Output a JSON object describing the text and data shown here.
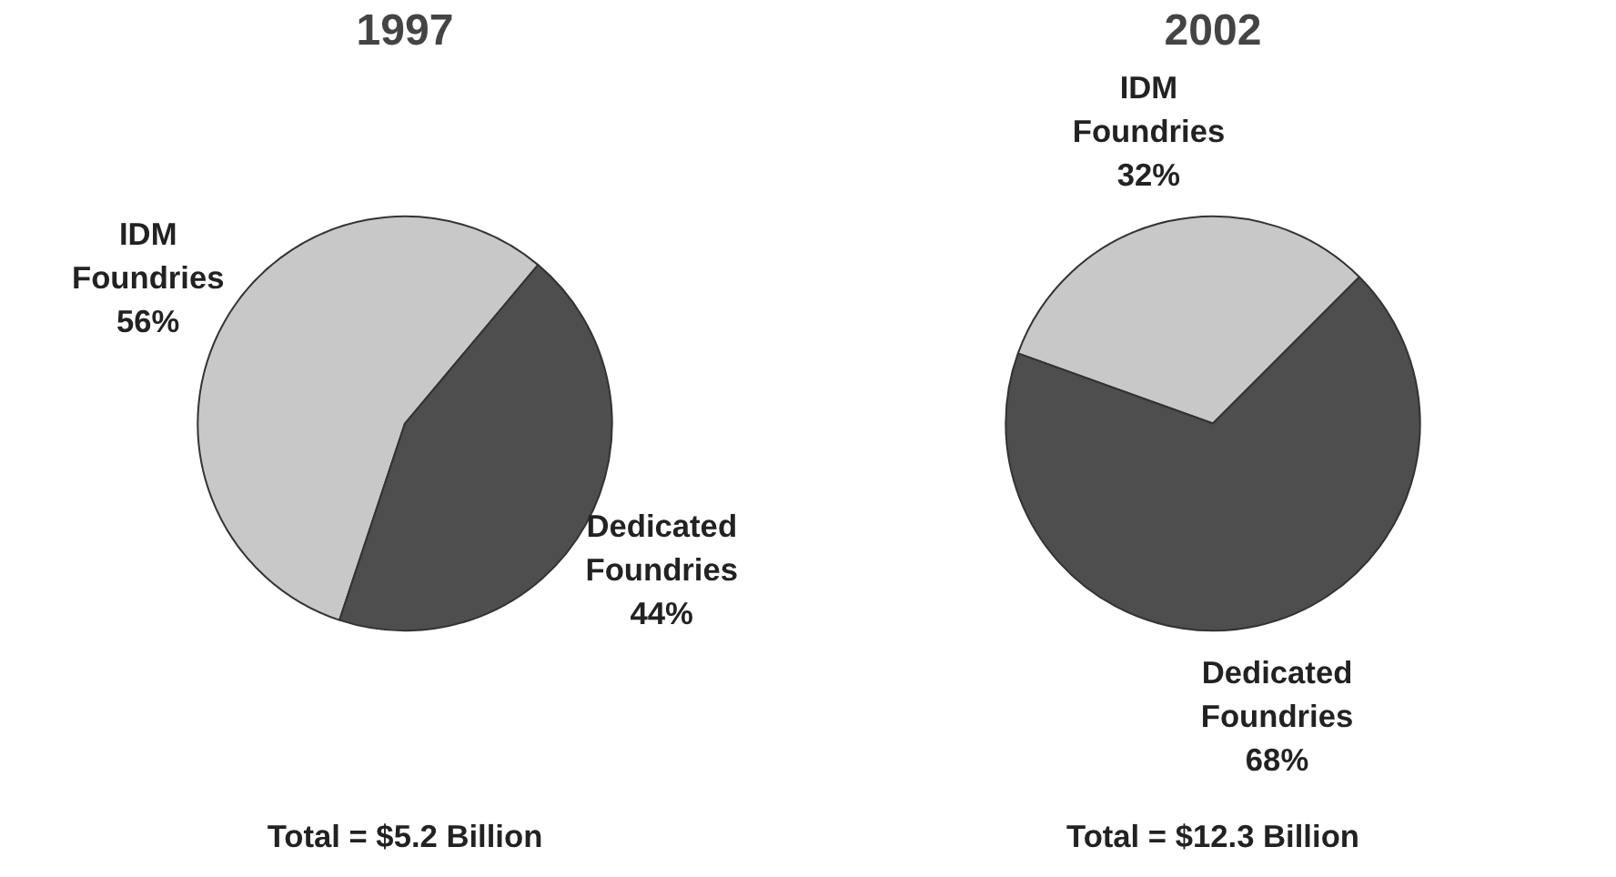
{
  "chart_data": [
    {
      "type": "pie",
      "title": "1997",
      "categories": [
        "IDM Foundries",
        "Dedicated Foundries"
      ],
      "values": [
        56,
        44
      ],
      "colors": [
        "#c8c8c8",
        "#4e4e4e"
      ],
      "value_labels": [
        "56%",
        "44%"
      ],
      "annotations": [
        "Total = $5.2 Billion"
      ]
    },
    {
      "type": "pie",
      "title": "2002",
      "categories": [
        "IDM Foundries",
        "Dedicated Foundries"
      ],
      "values": [
        32,
        68
      ],
      "colors": [
        "#c8c8c8",
        "#4e4e4e"
      ],
      "value_labels": [
        "32%",
        "68%"
      ],
      "annotations": [
        "Total = $12.3 Billion"
      ]
    }
  ]
}
